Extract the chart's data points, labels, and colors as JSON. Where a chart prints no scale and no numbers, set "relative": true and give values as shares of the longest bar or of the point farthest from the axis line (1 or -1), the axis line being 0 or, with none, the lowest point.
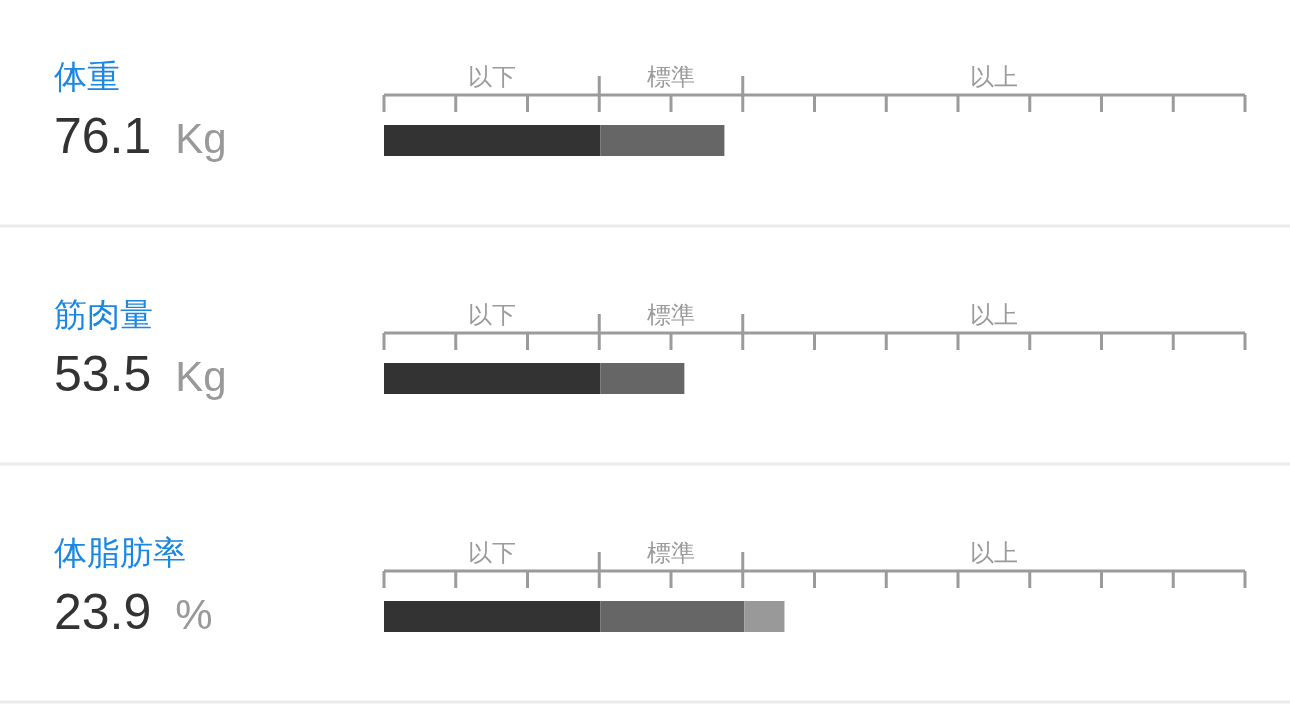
{
  "chart_data": {
    "type": "bar",
    "orientation": "horizontal",
    "stacked": true,
    "relative": true,
    "tick_labels": "y",
    "categories": [
      "体重",
      "筋肉量",
      "体脂肪率"
    ],
    "series": [
      {
        "color": "#333333",
        "values": [
          0.54,
          0.54,
          0.54
        ]
      },
      {
        "color": "#666666",
        "values": [
          0.31,
          0.21,
          0.36
        ]
      },
      {
        "color": "#999999",
        "values": [
          null,
          null,
          0.1
        ]
      }
    ],
    "xlim": [
      0,
      2.15
    ],
    "annotations": [
      "以下",
      "標準",
      "以上",
      "76.1 Kg",
      "53.5 Kg",
      "23.9 %"
    ]
  }
}
